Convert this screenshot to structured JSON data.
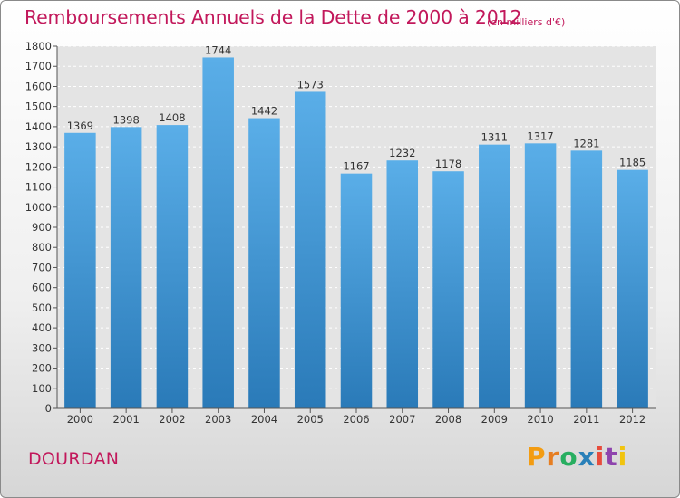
{
  "chart_data": {
    "type": "bar",
    "title": "Remboursements Annuels de la Dette de 2000 à 2012",
    "subtitle": "(en milliers d'€)",
    "categories": [
      "2000",
      "2001",
      "2002",
      "2003",
      "2004",
      "2005",
      "2006",
      "2007",
      "2008",
      "2009",
      "2010",
      "2011",
      "2012"
    ],
    "values": [
      1369,
      1398,
      1408,
      1744,
      1442,
      1573,
      1167,
      1232,
      1178,
      1311,
      1317,
      1281,
      1185
    ],
    "ylim": [
      0,
      1800
    ],
    "ytick_step": 100,
    "grid": true,
    "bar_color_top": "#5aaee8",
    "bar_color_bottom": "#2a7ab8"
  },
  "footer": {
    "city": "DOURDAN",
    "brand": [
      "P",
      "r",
      "o",
      "x",
      "i",
      "t",
      "i"
    ],
    "brand_colors": [
      "#f39c12",
      "#e67e22",
      "#27ae60",
      "#2980b9",
      "#e74c3c",
      "#8e44ad",
      "#f1c40f"
    ]
  }
}
